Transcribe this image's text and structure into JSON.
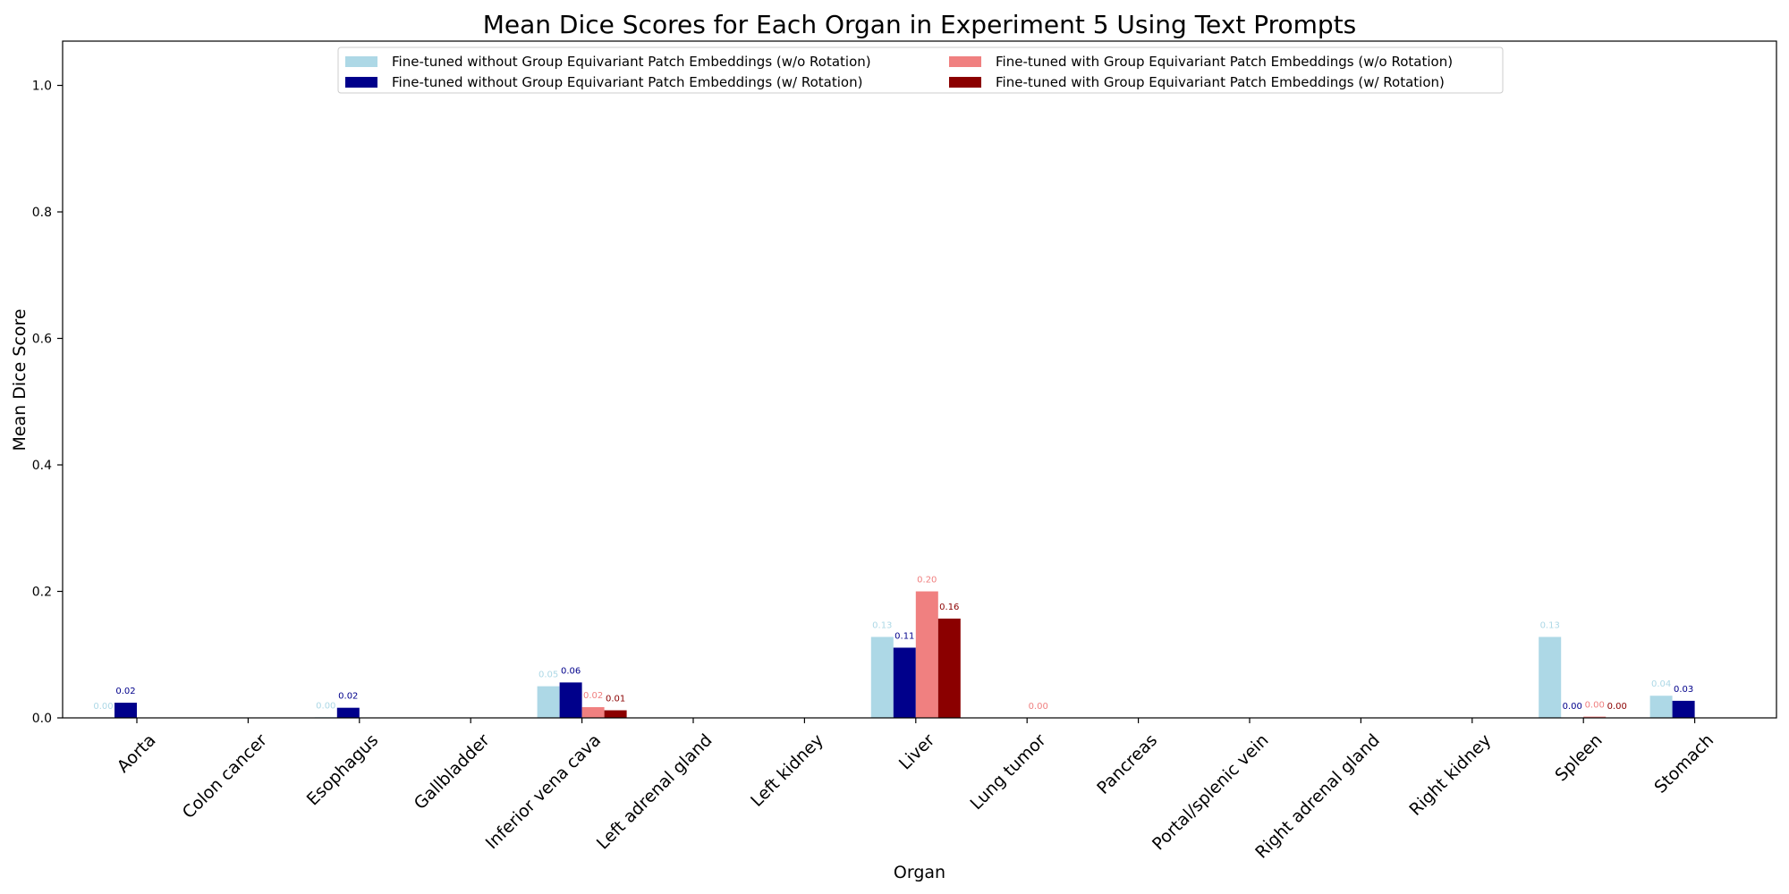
{
  "chart_data": {
    "type": "bar",
    "title": "Mean Dice Scores for Each Organ in Experiment 5 Using Text Prompts",
    "xlabel": "Organ",
    "ylabel": "Mean Dice Score",
    "ylim": [
      0,
      1.07
    ],
    "yticks": [
      0.0,
      0.2,
      0.4,
      0.6,
      0.8,
      1.0
    ],
    "ytick_labels": [
      "0.0",
      "0.2",
      "0.4",
      "0.6",
      "0.8",
      "1.0"
    ],
    "grid": false,
    "legend_position": "top-center",
    "categories": [
      "Aorta",
      "Colon cancer",
      "Esophagus",
      "Gallbladder",
      "Inferior vena cava",
      "Left adrenal gland",
      "Left kidney",
      "Liver",
      "Lung tumor",
      "Pancreas",
      "Portal/splenic vein",
      "Right adrenal gland",
      "Right kidney",
      "Spleen",
      "Stomach"
    ],
    "series": [
      {
        "name": "Fine-tuned without Group Equivariant Patch Embeddings (w/o Rotation)",
        "color": "#add8e6",
        "values": [
          0.0,
          null,
          0.001,
          null,
          0.05,
          null,
          null,
          0.128,
          null,
          null,
          null,
          null,
          null,
          0.128,
          0.035
        ],
        "labels": [
          "0.00",
          "",
          "0.00",
          "",
          "0.05",
          "",
          "",
          "0.13",
          "",
          "",
          "",
          "",
          "",
          "0.13",
          "0.04"
        ]
      },
      {
        "name": "Fine-tuned without Group Equivariant Patch Embeddings (w/ Rotation)",
        "color": "#00008b",
        "values": [
          0.024,
          null,
          0.016,
          null,
          0.056,
          null,
          null,
          0.111,
          null,
          null,
          null,
          null,
          null,
          0.0,
          0.027
        ],
        "labels": [
          "0.02",
          "",
          "0.02",
          "",
          "0.06",
          "",
          "",
          "0.11",
          "",
          "",
          "",
          "",
          "",
          "0.00",
          "0.03"
        ]
      },
      {
        "name": "Fine-tuned with Group Equivariant Patch Embeddings (w/o Rotation)",
        "color": "#f08080",
        "values": [
          null,
          null,
          null,
          null,
          0.017,
          null,
          null,
          0.2,
          0.0,
          null,
          null,
          null,
          null,
          0.002,
          null
        ],
        "labels": [
          "",
          "",
          "",
          "",
          "0.02",
          "",
          "",
          "0.20",
          "0.00",
          "",
          "",
          "",
          "",
          "0.00",
          ""
        ]
      },
      {
        "name": "Fine-tuned with Group Equivariant Patch Embeddings (w/ Rotation)",
        "color": "#8b0000",
        "values": [
          null,
          null,
          null,
          null,
          0.012,
          null,
          null,
          0.157,
          null,
          null,
          null,
          null,
          null,
          0.0,
          null
        ],
        "labels": [
          "",
          "",
          "",
          "",
          "0.01",
          "",
          "",
          "0.16",
          "",
          "",
          "",
          "",
          "",
          "0.00",
          ""
        ]
      }
    ]
  }
}
